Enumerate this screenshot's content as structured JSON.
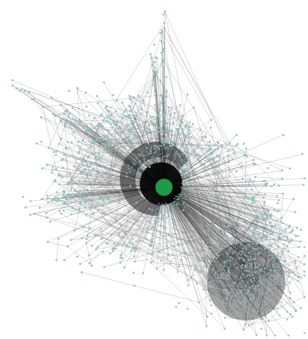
{
  "network": {
    "hub_label": "",
    "colors": {
      "background": "#ffffff",
      "edge": "#3a3a3a",
      "node": "#9ad0c8",
      "node_stroke": "#5f8f88",
      "hub": "#1f9a48"
    },
    "structure_description_hidden": true
  }
}
